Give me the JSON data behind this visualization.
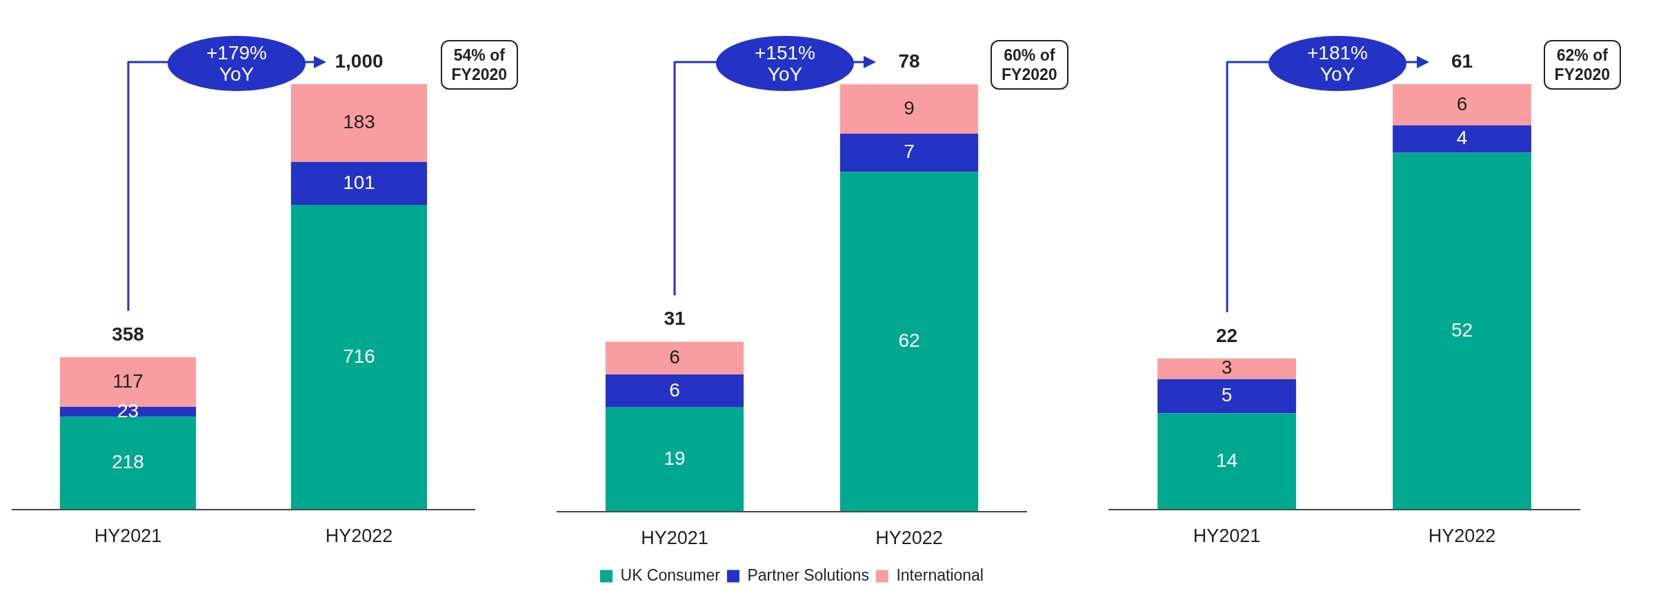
{
  "chart_data": [
    {
      "type": "bar",
      "stacked": true,
      "data_labels": true,
      "categories": [
        "HY2021",
        "HY2022"
      ],
      "totals": [
        "358",
        "1,000"
      ],
      "annotations": [
        "+179% YoY",
        "54% of FY2020"
      ],
      "series": [
        {
          "color": "#00a88f",
          "values": [
            218,
            716
          ]
        },
        {
          "color": "#2433c6",
          "values": [
            23,
            101
          ]
        },
        {
          "color": "#f99ea0",
          "values": [
            117,
            183
          ]
        }
      ]
    },
    {
      "type": "bar",
      "stacked": true,
      "data_labels": true,
      "legend": "bottom",
      "categories": [
        "HY2021",
        "HY2022"
      ],
      "totals": [
        "31",
        "78"
      ],
      "annotations": [
        "+151% YoY",
        "60% of FY2020"
      ],
      "series": [
        {
          "name": "UK Consumer",
          "color": "#00a88f",
          "values": [
            19,
            62
          ]
        },
        {
          "name": "Partner Solutions",
          "color": "#2433c6",
          "values": [
            6,
            7
          ]
        },
        {
          "name": "International",
          "color": "#f99ea0",
          "values": [
            6,
            9
          ]
        }
      ]
    },
    {
      "type": "bar",
      "stacked": true,
      "data_labels": true,
      "categories": [
        "HY2021",
        "HY2022"
      ],
      "totals": [
        "22",
        "61"
      ],
      "annotations": [
        "+181% YoY",
        "62% of FY2020"
      ],
      "series": [
        {
          "color": "#00a88f",
          "values": [
            14,
            52
          ]
        },
        {
          "color": "#2433c6",
          "values": [
            5,
            4
          ]
        },
        {
          "color": "#f99ea0",
          "values": [
            3,
            6
          ]
        }
      ]
    }
  ]
}
